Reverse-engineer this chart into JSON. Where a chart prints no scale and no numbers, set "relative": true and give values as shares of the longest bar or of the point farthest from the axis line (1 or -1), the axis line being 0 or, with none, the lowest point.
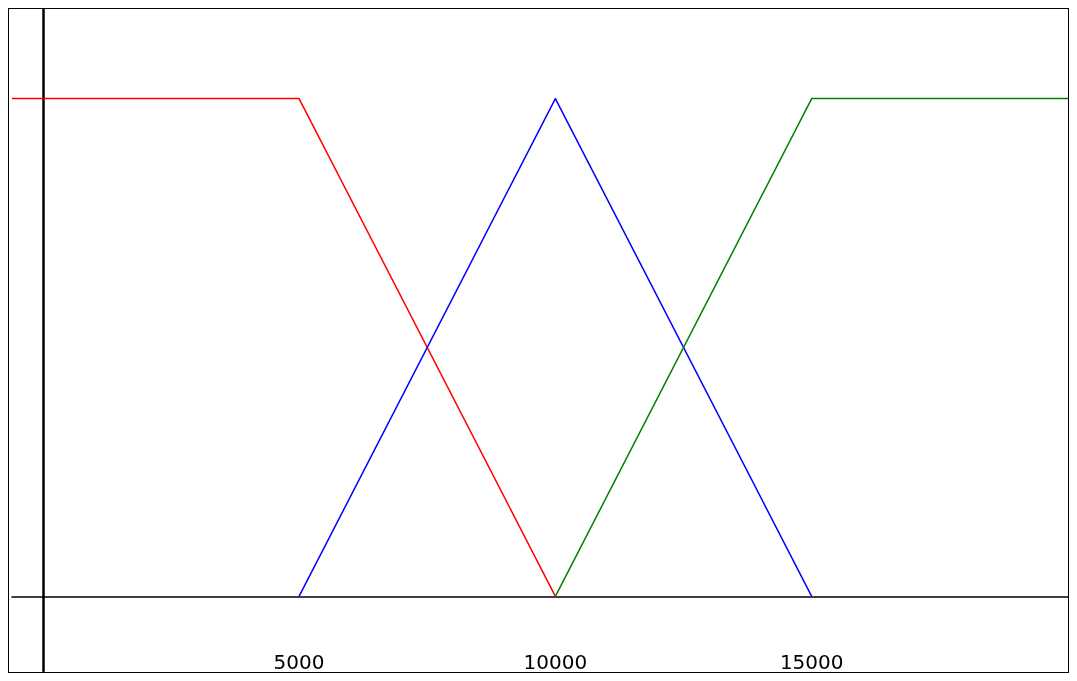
{
  "chart_data": {
    "type": "line",
    "relative": true,
    "xlim": [
      -600,
      20000
    ],
    "xticks": [
      5000,
      10000,
      15000
    ],
    "grid": false,
    "marker": "none",
    "line_style": "solid",
    "series": [
      {
        "color": "#ff0000",
        "x": [
          -600,
          5000,
          10000
        ],
        "values": [
          1,
          1,
          0
        ]
      },
      {
        "color": "#0000ff",
        "x": [
          5000,
          10000,
          15000
        ],
        "values": [
          0,
          1,
          0
        ]
      },
      {
        "color": "#008000",
        "x": [
          10000,
          15000,
          20000
        ],
        "values": [
          0,
          1,
          1
        ]
      }
    ]
  }
}
